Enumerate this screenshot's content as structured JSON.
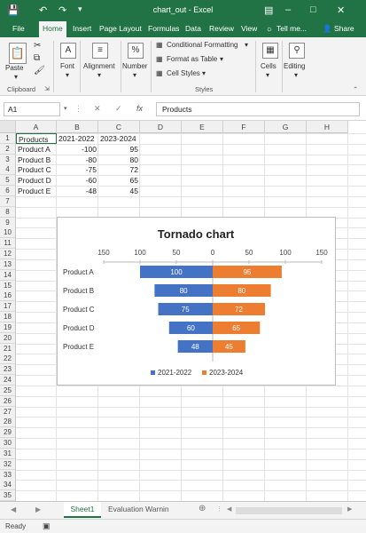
{
  "window": {
    "title": "chart_out - Excel"
  },
  "tabs": [
    "File",
    "Home",
    "Insert",
    "Page Layout",
    "Formulas",
    "Data",
    "Review",
    "View"
  ],
  "tell_me": "Tell me...",
  "share": "Share",
  "ribbon": {
    "paste": "Paste",
    "clipboard": "Clipboard",
    "font": "Font",
    "alignment": "Alignment",
    "number": "Number",
    "conditional_formatting": "Conditional Formatting",
    "format_as_table": "Format as Table",
    "cell_styles": "Cell Styles",
    "styles": "Styles",
    "cells": "Cells",
    "editing": "Editing"
  },
  "formula_bar": {
    "name_box": "A1",
    "fx": "fx",
    "value": "Products"
  },
  "columns": [
    "A",
    "B",
    "C",
    "D",
    "E",
    "F",
    "G",
    "H"
  ],
  "table": {
    "headers": [
      "Products",
      "2021-2022",
      "2023-2024"
    ],
    "rows": [
      {
        "product": "Product A",
        "v1": "-100",
        "v2": "95"
      },
      {
        "product": "Product B",
        "v1": "-80",
        "v2": "80"
      },
      {
        "product": "Product C",
        "v1": "-75",
        "v2": "72"
      },
      {
        "product": "Product D",
        "v1": "-60",
        "v2": "65"
      },
      {
        "product": "Product E",
        "v1": "-48",
        "v2": "45"
      }
    ]
  },
  "chart_data": {
    "type": "bar",
    "title": "Tornado chart",
    "categories": [
      "Product A",
      "Product B",
      "Product C",
      "Product D",
      "Product E"
    ],
    "series": [
      {
        "name": "2021-2022",
        "values": [
          -100,
          -80,
          -75,
          -60,
          -48
        ],
        "labels": [
          "100",
          "80",
          "75",
          "60",
          "48"
        ],
        "color": "#4472c4"
      },
      {
        "name": "2023-2024",
        "values": [
          95,
          80,
          72,
          65,
          45
        ],
        "labels": [
          "95",
          "80",
          "72",
          "65",
          "45"
        ],
        "color": "#ed7d31"
      }
    ],
    "xlim": [
      -150,
      150
    ],
    "ticks": [
      "150",
      "100",
      "50",
      "0",
      "50",
      "100",
      "150"
    ],
    "tick_values": [
      -150,
      -100,
      -50,
      0,
      50,
      100,
      150
    ],
    "legend": "bottom"
  },
  "sheets": {
    "active": "Sheet1",
    "other": "Evaluation Warnin"
  },
  "status": {
    "ready": "Ready"
  }
}
